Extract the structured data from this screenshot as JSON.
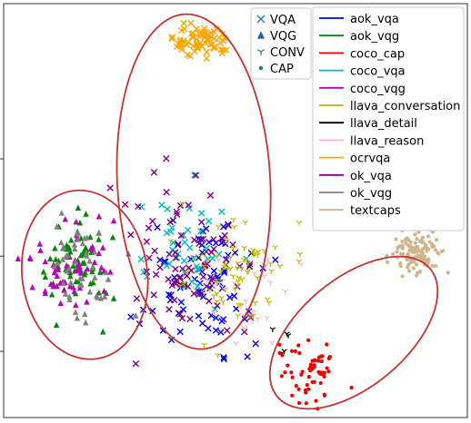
{
  "chart_data": {
    "type": "scatter",
    "title": "",
    "xlabel": "",
    "ylabel": "",
    "xlim": [
      0,
      1
    ],
    "ylim": [
      0,
      1
    ],
    "grid": false,
    "marker_legend": {
      "placement": "top-center",
      "entries": [
        {
          "label": "VQA",
          "marker": "x"
        },
        {
          "label": "VQG",
          "marker": "triangle"
        },
        {
          "label": "CONV",
          "marker": "tri_down"
        },
        {
          "label": "CAP",
          "marker": "dot"
        }
      ]
    },
    "color_legend": {
      "placement": "top-right",
      "entries": [
        {
          "label": "aok_vqa",
          "color": "#0000ee"
        },
        {
          "label": "aok_vqg",
          "color": "#008800"
        },
        {
          "label": "coco_cap",
          "color": "#ee0000"
        },
        {
          "label": "coco_vqa",
          "color": "#00bbbb"
        },
        {
          "label": "coco_vqg",
          "color": "#bb00bb"
        },
        {
          "label": "llava_conversation",
          "color": "#b8b800"
        },
        {
          "label": "llava_detail",
          "color": "#000000"
        },
        {
          "label": "llava_reason",
          "color": "#ffb6c1"
        },
        {
          "label": "ocrvqa",
          "color": "#ffa500"
        },
        {
          "label": "ok_vqa",
          "color": "#800080"
        },
        {
          "label": "ok_vqg",
          "color": "#808080"
        },
        {
          "label": "textcaps",
          "color": "#d2b48c"
        }
      ]
    },
    "ellipse_color": "#c83232",
    "clusters": [
      {
        "series": "ocrvqa",
        "marker": "x",
        "count": 70,
        "center": [
          0.425,
          0.91
        ],
        "spread": [
          0.052,
          0.036
        ]
      },
      {
        "series": "aok_vqg",
        "marker": "triangle",
        "count": 65,
        "center": [
          0.158,
          0.37
        ],
        "spread": [
          0.07,
          0.1
        ]
      },
      {
        "series": "coco_vqg",
        "marker": "triangle",
        "count": 55,
        "center": [
          0.15,
          0.37
        ],
        "spread": [
          0.07,
          0.1
        ]
      },
      {
        "series": "ok_vqg",
        "marker": "triangle",
        "count": 50,
        "center": [
          0.18,
          0.36
        ],
        "spread": [
          0.07,
          0.1
        ]
      },
      {
        "series": "aok_vqa",
        "marker": "x",
        "count": 80,
        "center": [
          0.42,
          0.32
        ],
        "spread": [
          0.1,
          0.15
        ]
      },
      {
        "series": "coco_vqa",
        "marker": "x",
        "count": 40,
        "center": [
          0.4,
          0.4
        ],
        "spread": [
          0.1,
          0.15
        ]
      },
      {
        "series": "ok_vqa",
        "marker": "x",
        "count": 80,
        "center": [
          0.39,
          0.38
        ],
        "spread": [
          0.1,
          0.16
        ]
      },
      {
        "series": "llava_conversation",
        "marker": "tri_down",
        "count": 70,
        "center": [
          0.5,
          0.33
        ],
        "spread": [
          0.1,
          0.12
        ]
      },
      {
        "series": "llava_reason",
        "marker": "tri_down",
        "count": 25,
        "center": [
          0.52,
          0.3
        ],
        "spread": [
          0.08,
          0.1
        ]
      },
      {
        "series": "llava_detail",
        "marker": "tri_down",
        "count": 5,
        "center": [
          0.6,
          0.18
        ],
        "spread": [
          0.03,
          0.04
        ]
      },
      {
        "series": "textcaps",
        "marker": "dot",
        "count": 120,
        "center": [
          0.89,
          0.4
        ],
        "spread": [
          0.045,
          0.05
        ]
      },
      {
        "series": "coco_cap",
        "marker": "dot",
        "count": 60,
        "center": [
          0.67,
          0.1
        ],
        "spread": [
          0.06,
          0.07
        ]
      }
    ],
    "ellipses": [
      {
        "center": [
          0.41,
          0.57
        ],
        "radii": [
          0.165,
          0.405
        ],
        "angle": -3
      },
      {
        "center": [
          0.175,
          0.345
        ],
        "radii": [
          0.135,
          0.205
        ],
        "angle": -8
      },
      {
        "center": [
          0.755,
          0.205
        ],
        "radii": [
          0.215,
          0.13
        ],
        "angle": -40
      }
    ]
  }
}
